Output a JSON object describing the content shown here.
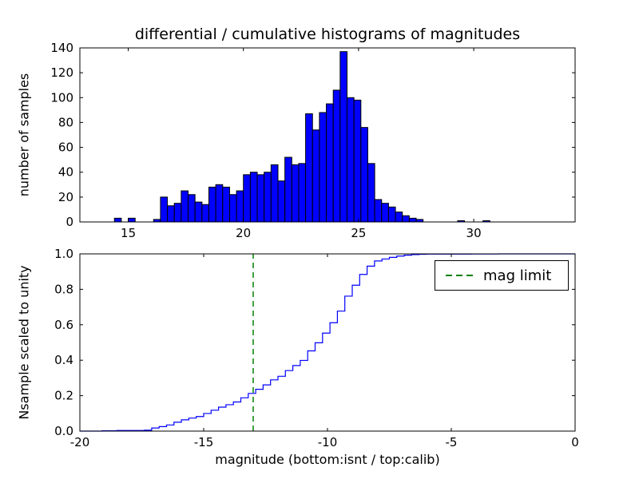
{
  "figure": {
    "background": "#ffffff",
    "axes_color": "#000000"
  },
  "chart_data": [
    {
      "type": "bar",
      "title": "differential / cumulative histograms of magnitudes",
      "ylabel": "number of samples",
      "xlim": [
        12.9,
        34.4
      ],
      "ylim": [
        0,
        140
      ],
      "xticks": [
        15,
        20,
        25,
        30
      ],
      "xticklabels": [
        "15",
        "20",
        "25",
        "30"
      ],
      "yticks": [
        0,
        20,
        40,
        60,
        80,
        100,
        120,
        140
      ],
      "yticklabels": [
        "0",
        "20",
        "40",
        "60",
        "80",
        "100",
        "120",
        "140"
      ],
      "grid": false,
      "bar_width": 0.3,
      "bar_color": "#0000ff",
      "bar_edge_color": "#000000",
      "bins": [
        [
          14.4,
          3
        ],
        [
          15.0,
          3
        ],
        [
          16.1,
          2
        ],
        [
          16.4,
          20
        ],
        [
          16.7,
          13
        ],
        [
          17.0,
          15
        ],
        [
          17.3,
          25
        ],
        [
          17.6,
          22
        ],
        [
          17.9,
          16
        ],
        [
          18.2,
          14
        ],
        [
          18.5,
          28
        ],
        [
          18.8,
          30
        ],
        [
          19.1,
          28
        ],
        [
          19.4,
          22
        ],
        [
          19.7,
          25
        ],
        [
          20.0,
          38
        ],
        [
          20.3,
          40
        ],
        [
          20.6,
          38
        ],
        [
          20.9,
          40
        ],
        [
          21.2,
          46
        ],
        [
          21.5,
          33
        ],
        [
          21.8,
          52
        ],
        [
          22.1,
          46
        ],
        [
          22.4,
          47
        ],
        [
          22.7,
          87
        ],
        [
          23.0,
          74
        ],
        [
          23.3,
          88
        ],
        [
          23.6,
          95
        ],
        [
          23.9,
          106
        ],
        [
          24.2,
          137
        ],
        [
          24.5,
          100
        ],
        [
          24.8,
          98
        ],
        [
          25.1,
          76
        ],
        [
          25.4,
          47
        ],
        [
          25.7,
          18
        ],
        [
          26.0,
          15
        ],
        [
          26.3,
          12
        ],
        [
          26.6,
          8
        ],
        [
          26.9,
          5
        ],
        [
          27.2,
          3
        ],
        [
          27.5,
          2
        ],
        [
          29.3,
          1
        ],
        [
          30.4,
          1
        ]
      ]
    },
    {
      "type": "line",
      "ylabel": "Nsample scaled to unity",
      "xlabel": "magnitude (bottom:isnt / top:calib)",
      "xlim": [
        -20,
        0
      ],
      "ylim": [
        0,
        1
      ],
      "xticks": [
        -20,
        -15,
        -10,
        -5,
        0
      ],
      "xticklabels": [
        "-20",
        "-15",
        "-10",
        "-5",
        "0"
      ],
      "yticks": [
        0.0,
        0.2,
        0.4,
        0.6,
        0.8,
        1.0
      ],
      "yticklabels": [
        "0.0",
        "0.2",
        "0.4",
        "0.6",
        "0.8",
        "1.0"
      ],
      "grid": false,
      "line_color": "#0000ff",
      "mag_offset": -33.5,
      "mag_limit": -13,
      "legend": {
        "label": "mag limit",
        "color": "#008000",
        "style": "dashed",
        "position": "upper right"
      }
    }
  ]
}
